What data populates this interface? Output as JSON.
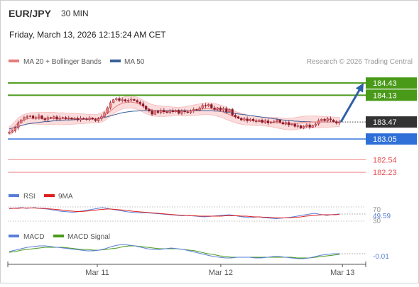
{
  "header": {
    "symbol": "EUR/JPY",
    "timeframe": "30 MIN",
    "datetime": "Friday, March 13, 2026 12:15:24 AM CET"
  },
  "legend": {
    "ma20_label": "MA 20 + Bollinger Bands",
    "ma50_label": "MA 50",
    "credit": "Research © 2026 Trading Central"
  },
  "colors": {
    "resistance": "#4a9a1a",
    "support_blue": "#2f6fd8",
    "support_red": "#e85050",
    "candle_up": "#e87a7a",
    "candle_down": "#8b1a2a",
    "bollinger_fill": "#fbdcdc",
    "ma20": "#e87a7a",
    "ma50": "#3a5f9a",
    "arrow": "#2f5fa8",
    "last_price_bg": "#333333",
    "rsi": "#5a7fd8",
    "rsi_9ma": "#e02020",
    "macd": "#5a7fd8",
    "macd_signal": "#4a9a1a"
  },
  "chart_data": [
    {
      "type": "candlestick",
      "name": "price",
      "ylim": [
        181.9,
        184.8
      ],
      "levels": [
        {
          "label": "184.43",
          "value": 184.43,
          "kind": "resistance"
        },
        {
          "label": "184.13",
          "value": 184.13,
          "kind": "resistance"
        },
        {
          "label": "183.47",
          "value": 183.47,
          "kind": "last"
        },
        {
          "label": "183.05",
          "value": 183.05,
          "kind": "support"
        },
        {
          "label": "182.54",
          "value": 182.54,
          "kind": "support-minor"
        },
        {
          "label": "182.23",
          "value": 182.23,
          "kind": "support-minor"
        }
      ],
      "close": [
        183.22,
        183.25,
        183.32,
        183.45,
        183.52,
        183.58,
        183.6,
        183.62,
        183.56,
        183.58,
        183.62,
        183.55,
        183.52,
        183.58,
        183.56,
        183.6,
        183.54,
        183.57,
        183.58,
        183.55,
        183.57,
        183.54,
        183.56,
        183.52,
        183.56,
        183.55,
        183.53,
        183.57,
        183.54,
        183.5,
        183.55,
        183.6,
        183.7,
        183.82,
        183.95,
        184.02,
        184.05,
        184.0,
        184.02,
        183.98,
        184.01,
        184.03,
        184.0,
        183.96,
        183.92,
        183.86,
        183.78,
        183.74,
        183.66,
        183.74,
        183.7,
        183.76,
        183.72,
        183.7,
        183.75,
        183.72,
        183.76,
        183.68,
        183.74,
        183.72,
        183.7,
        183.74,
        183.78,
        183.76,
        183.82,
        183.88,
        183.86,
        183.9,
        183.82,
        183.78,
        183.82,
        183.76,
        183.8,
        183.72,
        183.78,
        183.64,
        183.6,
        183.56,
        183.52,
        183.55,
        183.5,
        183.54,
        183.5,
        183.48,
        183.52,
        183.46,
        183.5,
        183.44,
        183.47,
        183.48,
        183.52,
        183.46,
        183.42,
        183.46,
        183.4,
        183.42,
        183.36,
        183.38,
        183.32,
        183.36,
        183.4,
        183.34,
        183.38,
        183.42,
        183.5,
        183.54,
        183.5,
        183.55,
        183.52,
        183.48,
        183.44,
        183.47
      ],
      "ma20": [
        183.25,
        183.3,
        183.38,
        183.45,
        183.5,
        183.53,
        183.55,
        183.56,
        183.56,
        183.56,
        183.56,
        183.56,
        183.56,
        183.56,
        183.56,
        183.56,
        183.55,
        183.55,
        183.55,
        183.55,
        183.55,
        183.55,
        183.55,
        183.55,
        183.55,
        183.55,
        183.55,
        183.55,
        183.55,
        183.55,
        183.56,
        183.58,
        183.62,
        183.68,
        183.74,
        183.8,
        183.86,
        183.9,
        183.93,
        183.95,
        183.96,
        183.96,
        183.95,
        183.93,
        183.9,
        183.86,
        183.82,
        183.79,
        183.76,
        183.75,
        183.74,
        183.74,
        183.73,
        183.73,
        183.73,
        183.73,
        183.73,
        183.73,
        183.73,
        183.73,
        183.74,
        183.75,
        183.76,
        183.77,
        183.78,
        183.79,
        183.8,
        183.8,
        183.79,
        183.78,
        183.76,
        183.74,
        183.71,
        183.68,
        183.65,
        183.62,
        183.59,
        183.57,
        183.55,
        183.53,
        183.52,
        183.51,
        183.5,
        183.49,
        183.49,
        183.48,
        183.48,
        183.47,
        183.47,
        183.46,
        183.45,
        183.44,
        183.43,
        183.42,
        183.42,
        183.42,
        183.43,
        183.44,
        183.45,
        183.46,
        183.47,
        183.47,
        183.47,
        183.47,
        183.47,
        183.47,
        183.47,
        183.47,
        183.47,
        183.47,
        183.47,
        183.47
      ],
      "ma50": [
        183.3,
        183.32,
        183.34,
        183.36,
        183.38,
        183.4,
        183.42,
        183.43,
        183.44,
        183.45,
        183.46,
        183.47,
        183.48,
        183.48,
        183.49,
        183.5,
        183.5,
        183.51,
        183.51,
        183.52,
        183.52,
        183.52,
        183.53,
        183.53,
        183.53,
        183.54,
        183.54,
        183.54,
        183.55,
        183.55,
        183.56,
        183.57,
        183.58,
        183.6,
        183.62,
        183.64,
        183.66,
        183.68,
        183.7,
        183.71,
        183.72,
        183.73,
        183.74,
        183.74,
        183.75,
        183.75,
        183.75,
        183.75,
        183.75,
        183.75,
        183.75,
        183.75,
        183.75,
        183.75,
        183.75,
        183.75,
        183.75,
        183.75,
        183.75,
        183.75,
        183.75,
        183.75,
        183.75,
        183.75,
        183.75,
        183.75,
        183.75,
        183.75,
        183.75,
        183.74,
        183.74,
        183.73,
        183.72,
        183.71,
        183.7,
        183.69,
        183.68,
        183.67,
        183.66,
        183.65,
        183.64,
        183.63,
        183.62,
        183.61,
        183.6,
        183.59,
        183.58,
        183.57,
        183.56,
        183.55,
        183.54,
        183.53,
        183.52,
        183.51,
        183.5,
        183.5,
        183.49,
        183.49,
        183.48,
        183.48,
        183.48,
        183.48,
        183.47,
        183.47,
        183.47,
        183.47,
        183.47,
        183.47,
        183.47,
        183.47,
        183.47,
        183.47
      ],
      "forecast_arrow": {
        "from": 183.47,
        "to": 184.43
      }
    },
    {
      "type": "line",
      "name": "RSI",
      "series_labels": [
        "RSI",
        "9MA"
      ],
      "levels": [
        "70",
        "30"
      ],
      "last_value_label": "49.59",
      "ylim": [
        20,
        80
      ],
      "rsi": [
        65,
        66,
        67,
        68,
        66,
        67,
        68,
        66,
        65,
        64,
        62,
        60,
        58,
        57,
        56,
        55,
        56,
        58,
        60,
        62,
        64,
        66,
        68,
        66,
        64,
        62,
        60,
        58,
        56,
        55,
        54,
        53,
        54,
        53,
        52,
        51,
        50,
        49,
        48,
        47,
        46,
        45,
        46,
        45,
        44,
        43,
        42,
        43,
        44,
        45,
        46,
        47,
        48,
        46,
        44,
        42,
        41,
        40,
        41,
        42,
        40,
        39,
        38,
        37,
        38,
        39,
        40,
        42,
        44,
        46,
        48,
        50,
        52,
        50,
        48,
        46,
        48,
        49,
        50
      ],
      "ma9": [
        66,
        66,
        66,
        67,
        67,
        67,
        67,
        66,
        66,
        65,
        64,
        63,
        62,
        60,
        59,
        58,
        57,
        57,
        58,
        59,
        60,
        62,
        63,
        64,
        64,
        63,
        62,
        61,
        60,
        58,
        57,
        56,
        55,
        54,
        53,
        52,
        51,
        50,
        49,
        48,
        47,
        46,
        46,
        45,
        45,
        44,
        44,
        44,
        44,
        44,
        44,
        45,
        45,
        45,
        45,
        44,
        44,
        43,
        42,
        42,
        41,
        41,
        40,
        39,
        39,
        39,
        39,
        40,
        41,
        42,
        44,
        45,
        46,
        47,
        48,
        48,
        48,
        48,
        49
      ]
    },
    {
      "type": "line",
      "name": "MACD",
      "series_labels": [
        "MACD",
        "MACD Signal"
      ],
      "last_value_label": "-0.01",
      "ylim": [
        -0.12,
        0.14
      ],
      "macd": [
        0.02,
        0.04,
        0.06,
        0.08,
        0.09,
        0.1,
        0.1,
        0.09,
        0.08,
        0.07,
        0.06,
        0.05,
        0.04,
        0.03,
        0.03,
        0.04,
        0.06,
        0.09,
        0.11,
        0.12,
        0.11,
        0.1,
        0.08,
        0.06,
        0.05,
        0.05,
        0.06,
        0.07,
        0.06,
        0.05,
        0.03,
        0.01,
        -0.01,
        -0.03,
        -0.05,
        -0.06,
        -0.07,
        -0.07,
        -0.06,
        -0.06,
        -0.06,
        -0.07,
        -0.07,
        -0.06,
        -0.05,
        -0.05,
        -0.06,
        -0.07,
        -0.08,
        -0.08,
        -0.07,
        -0.05,
        -0.03,
        -0.02,
        -0.01,
        -0.01
      ],
      "signal": [
        0.01,
        0.02,
        0.04,
        0.05,
        0.06,
        0.07,
        0.08,
        0.08,
        0.08,
        0.08,
        0.07,
        0.06,
        0.05,
        0.05,
        0.04,
        0.04,
        0.05,
        0.06,
        0.07,
        0.09,
        0.1,
        0.1,
        0.09,
        0.08,
        0.07,
        0.06,
        0.06,
        0.06,
        0.06,
        0.05,
        0.04,
        0.03,
        0.01,
        -0.01,
        -0.02,
        -0.04,
        -0.05,
        -0.06,
        -0.06,
        -0.06,
        -0.06,
        -0.06,
        -0.06,
        -0.06,
        -0.06,
        -0.06,
        -0.06,
        -0.06,
        -0.07,
        -0.07,
        -0.07,
        -0.06,
        -0.05,
        -0.04,
        -0.03,
        -0.02
      ]
    }
  ],
  "x_axis": {
    "ticks": [
      {
        "label": "Mar 11",
        "fraction": 0.25
      },
      {
        "label": "Mar 12",
        "fraction": 0.595
      },
      {
        "label": "Mar 13",
        "fraction": 0.935
      }
    ]
  }
}
